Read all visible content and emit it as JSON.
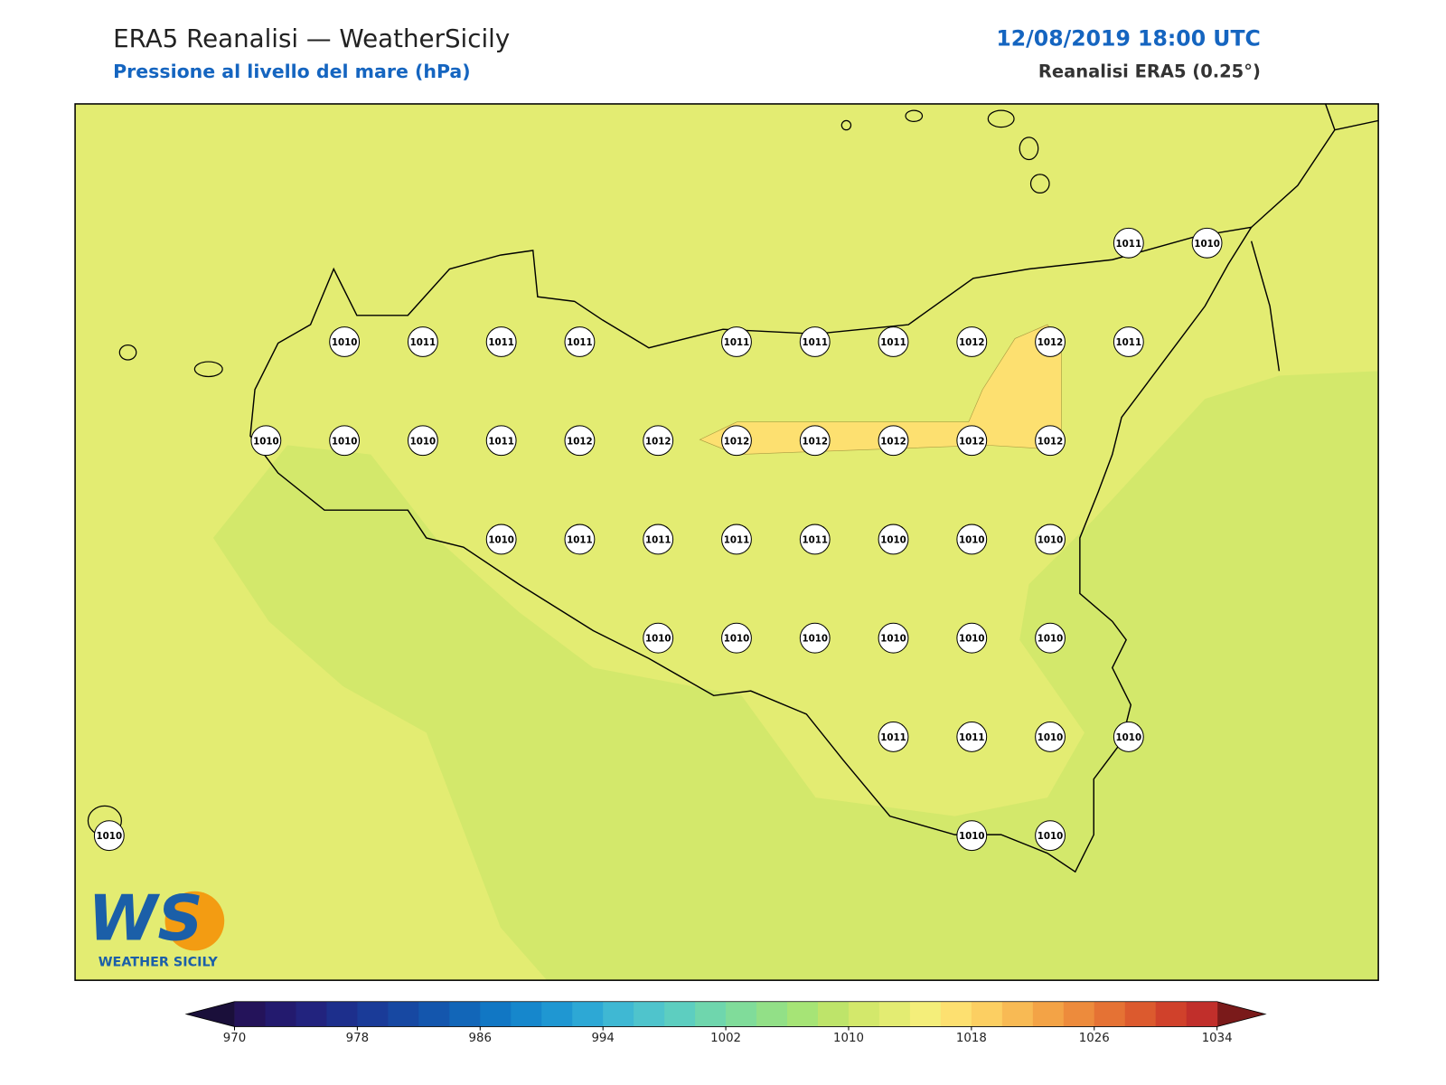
{
  "header": {
    "title": "ERA5 Reanalisi — WeatherSicily",
    "subtitle": "Pressione al livello del mare (hPa)",
    "datetime": "12/08/2019 18:00 UTC",
    "source": "Reanalisi ERA5 (0.25°)"
  },
  "stations": [
    1011,
    1010,
    1010,
    1011,
    1011,
    1011,
    1011,
    1011,
    1011,
    1012,
    1012,
    1011,
    1010,
    1010,
    1010,
    1011,
    1012,
    1012,
    1012,
    1012,
    1012,
    1012,
    1012,
    1010,
    1011,
    1011,
    1011,
    1011,
    1010,
    1010,
    1010,
    1010,
    1010,
    1010,
    1010,
    1010,
    1010,
    1011,
    1011,
    1010,
    1010,
    1010,
    1010,
    1010
  ],
  "colorbar": {
    "range": [
      970,
      1034
    ],
    "ticks": [
      970,
      978,
      986,
      994,
      1002,
      1010,
      1018,
      1026,
      1034
    ],
    "under_color": "#1a0f3a",
    "over_color": "#7a1a1a",
    "colors": [
      "#24135a",
      "#231a6e",
      "#22237e",
      "#1d2f8c",
      "#1a3b98",
      "#1748a2",
      "#1456ad",
      "#1266b8",
      "#1177c4",
      "#1687cc",
      "#1f97d2",
      "#2da8d5",
      "#3fb8d3",
      "#4fc4cc",
      "#5dcec0",
      "#6fd6ad",
      "#80dc9a",
      "#92e087",
      "#a6e476",
      "#bee46a",
      "#d3e86b",
      "#e3ec72",
      "#f4ee7a",
      "#fde070",
      "#fccf62",
      "#f8ba54",
      "#f3a346",
      "#ed8b3c",
      "#e57234",
      "#dc5a2e",
      "#d0412b",
      "#c12f2b"
    ]
  },
  "logo": {
    "mark": "WS",
    "text": "WEATHER SICILY"
  }
}
